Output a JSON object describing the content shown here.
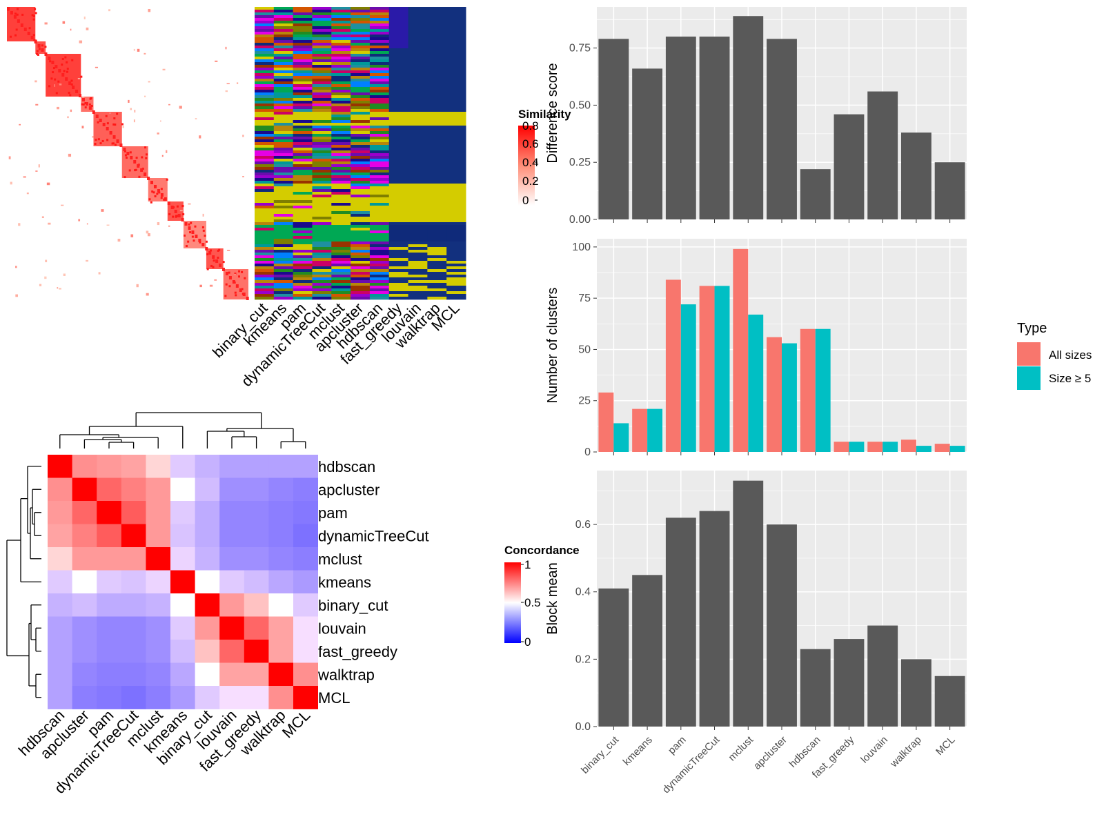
{
  "colors": {
    "panel_bg": "#EBEBEB",
    "bar_fill": "#595959",
    "all_sizes": "#F8766D",
    "size_ge5": "#00BFC4",
    "sim_high": "#FF0000",
    "conc_high": "#FF0000",
    "conc_mid": "#FFFFFF",
    "conc_low": "#0000FF"
  },
  "heatmap": {
    "sim_legend_title": "Similarity",
    "sim_ticks": [
      "0.8",
      "0.6",
      "0.4",
      "0.2",
      "0"
    ],
    "method_cols": [
      "binary_cut",
      "kmeans",
      "pam",
      "dynamicTreeCut",
      "mclust",
      "apcluster",
      "hdbscan",
      "fast_greedy",
      "louvain",
      "walktrap",
      "MCL"
    ]
  },
  "concordance": {
    "legend_title": "Concordance",
    "legend_ticks": [
      "1",
      "0.5",
      "0"
    ],
    "labels": [
      "hdbscan",
      "apcluster",
      "pam",
      "dynamicTreeCut",
      "mclust",
      "kmeans",
      "binary_cut",
      "louvain",
      "fast_greedy",
      "walktrap",
      "MCL"
    ],
    "matrix": [
      [
        1.0,
        0.72,
        0.7,
        0.68,
        0.58,
        0.42,
        0.35,
        0.3,
        0.3,
        0.3,
        0.3
      ],
      [
        0.72,
        1.0,
        0.8,
        0.75,
        0.7,
        0.5,
        0.38,
        0.25,
        0.25,
        0.22,
        0.2
      ],
      [
        0.7,
        0.8,
        1.0,
        0.82,
        0.7,
        0.42,
        0.33,
        0.22,
        0.22,
        0.2,
        0.18
      ],
      [
        0.68,
        0.75,
        0.82,
        1.0,
        0.7,
        0.4,
        0.33,
        0.22,
        0.22,
        0.2,
        0.16
      ],
      [
        0.58,
        0.7,
        0.7,
        0.7,
        1.0,
        0.45,
        0.35,
        0.25,
        0.25,
        0.22,
        0.2
      ],
      [
        0.42,
        0.5,
        0.42,
        0.4,
        0.45,
        1.0,
        0.5,
        0.42,
        0.38,
        0.32,
        0.28
      ],
      [
        0.35,
        0.38,
        0.33,
        0.33,
        0.35,
        0.5,
        1.0,
        0.7,
        0.62,
        0.5,
        0.42
      ],
      [
        0.3,
        0.25,
        0.22,
        0.22,
        0.25,
        0.42,
        0.7,
        1.0,
        0.8,
        0.68,
        0.48
      ],
      [
        0.3,
        0.25,
        0.22,
        0.22,
        0.25,
        0.38,
        0.62,
        0.8,
        1.0,
        0.68,
        0.48
      ],
      [
        0.3,
        0.22,
        0.2,
        0.2,
        0.22,
        0.32,
        0.5,
        0.68,
        0.68,
        1.0,
        0.72
      ],
      [
        0.3,
        0.2,
        0.18,
        0.16,
        0.2,
        0.28,
        0.42,
        0.48,
        0.48,
        0.72,
        1.0
      ]
    ]
  },
  "chart_data": [
    {
      "type": "bar",
      "categories": [
        "binary_cut",
        "kmeans",
        "pam",
        "dynamicTreeCut",
        "mclust",
        "apcluster",
        "hdbscan",
        "fast_greedy",
        "louvain",
        "walktrap",
        "MCL"
      ],
      "values": [
        0.79,
        0.66,
        0.8,
        0.8,
        0.89,
        0.79,
        0.22,
        0.46,
        0.56,
        0.38,
        0.25
      ],
      "ylabel": "Difference score",
      "yticks": [
        0.0,
        0.25,
        0.5,
        0.75
      ],
      "ytick_labels": [
        "0.00",
        "0.25",
        "0.50",
        "0.75"
      ],
      "ylim": [
        0,
        0.93
      ],
      "grid": true
    },
    {
      "type": "bar",
      "categories": [
        "binary_cut",
        "kmeans",
        "pam",
        "dynamicTreeCut",
        "mclust",
        "apcluster",
        "hdbscan",
        "fast_greedy",
        "louvain",
        "walktrap",
        "MCL"
      ],
      "series": [
        {
          "name": "All sizes",
          "values": [
            29,
            21,
            84,
            81,
            99,
            56,
            60,
            5,
            5,
            6,
            4
          ]
        },
        {
          "name": "Size ≥ 5",
          "values": [
            14,
            21,
            72,
            81,
            67,
            53,
            60,
            5,
            5,
            3,
            3
          ]
        }
      ],
      "ylabel": "Number of clusters",
      "yticks": [
        0,
        25,
        50,
        75,
        100
      ],
      "ytick_labels": [
        "0",
        "25",
        "50",
        "75",
        "100"
      ],
      "ylim": [
        0,
        104
      ],
      "legend_title": "Type",
      "legend_position": "right",
      "grid": true
    },
    {
      "type": "bar",
      "categories": [
        "binary_cut",
        "kmeans",
        "pam",
        "dynamicTreeCut",
        "mclust",
        "apcluster",
        "hdbscan",
        "fast_greedy",
        "louvain",
        "walktrap",
        "MCL"
      ],
      "values": [
        0.41,
        0.45,
        0.62,
        0.64,
        0.73,
        0.6,
        0.23,
        0.26,
        0.3,
        0.2,
        0.15
      ],
      "ylabel": "Block mean",
      "yticks": [
        0.0,
        0.2,
        0.4,
        0.6
      ],
      "ytick_labels": [
        "0.0",
        "0.2",
        "0.4",
        "0.6"
      ],
      "ylim": [
        0,
        0.76
      ],
      "grid": true
    }
  ]
}
